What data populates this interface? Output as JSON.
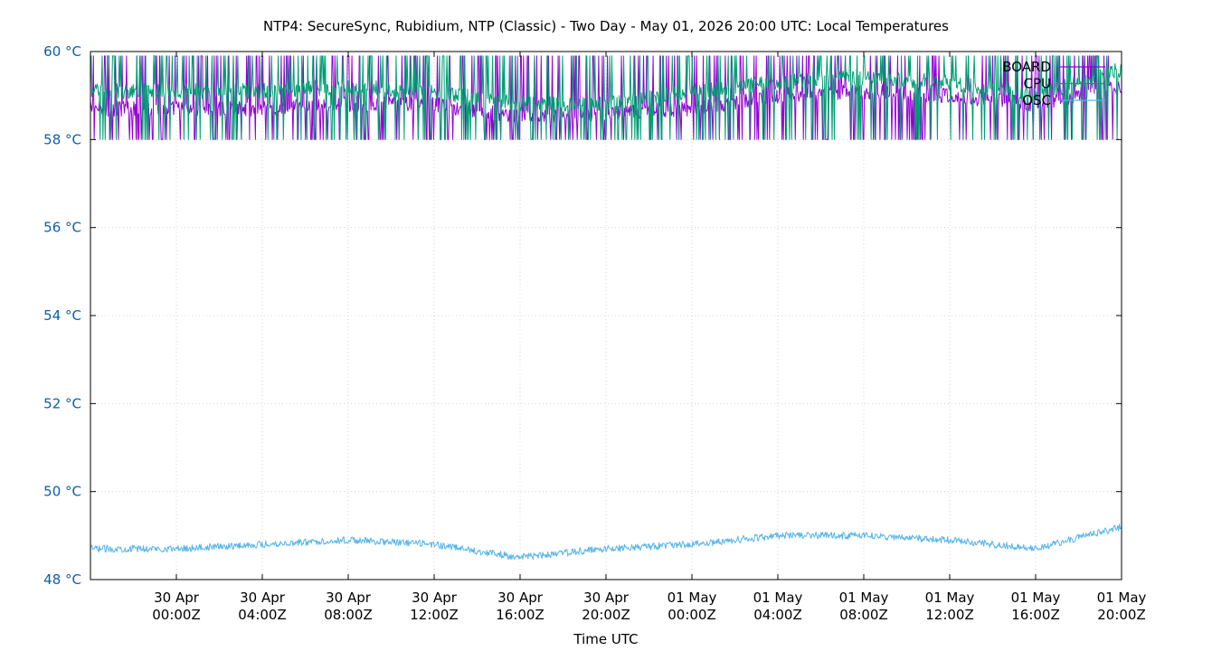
{
  "chart_data": {
    "type": "line",
    "title": "NTP4: SecureSync, Rubidium, NTP (Classic) - Two Day - May 01, 2026 20:00 UTC: Local Temperatures",
    "xlabel": "Time UTC",
    "ylabel": "",
    "ylim": [
      48,
      60
    ],
    "yunit": "°C",
    "yticks": [
      {
        "value": 48,
        "label": "48 °C"
      },
      {
        "value": 50,
        "label": "50 °C"
      },
      {
        "value": 52,
        "label": "52 °C"
      },
      {
        "value": 54,
        "label": "54 °C"
      },
      {
        "value": 56,
        "label": "56 °C"
      },
      {
        "value": 58,
        "label": "58 °C"
      },
      {
        "value": 60,
        "label": "60 °C"
      }
    ],
    "xrange": [
      "2026-04-29T20:00Z",
      "2026-05-01T20:00Z"
    ],
    "xticks": [
      {
        "time": "2026-04-30T00:00Z",
        "line1": "30 Apr",
        "line2": "00:00Z"
      },
      {
        "time": "2026-04-30T04:00Z",
        "line1": "30 Apr",
        "line2": "04:00Z"
      },
      {
        "time": "2026-04-30T08:00Z",
        "line1": "30 Apr",
        "line2": "08:00Z"
      },
      {
        "time": "2026-04-30T12:00Z",
        "line1": "30 Apr",
        "line2": "12:00Z"
      },
      {
        "time": "2026-04-30T16:00Z",
        "line1": "30 Apr",
        "line2": "16:00Z"
      },
      {
        "time": "2026-04-30T20:00Z",
        "line1": "30 Apr",
        "line2": "20:00Z"
      },
      {
        "time": "2026-05-01T00:00Z",
        "line1": "01 May",
        "line2": "00:00Z"
      },
      {
        "time": "2026-05-01T04:00Z",
        "line1": "01 May",
        "line2": "04:00Z"
      },
      {
        "time": "2026-05-01T08:00Z",
        "line1": "01 May",
        "line2": "08:00Z"
      },
      {
        "time": "2026-05-01T12:00Z",
        "line1": "01 May",
        "line2": "12:00Z"
      },
      {
        "time": "2026-05-01T16:00Z",
        "line1": "01 May",
        "line2": "16:00Z"
      },
      {
        "time": "2026-05-01T20:00Z",
        "line1": "01 May",
        "line2": "20:00Z"
      }
    ],
    "grid": true,
    "legend_position": "top-right",
    "series": [
      {
        "name": "BOARD",
        "color": "#9400d3",
        "x": [
          "2026-04-29T20:00Z",
          "2026-04-30T00:00Z",
          "2026-04-30T04:00Z",
          "2026-04-30T08:00Z",
          "2026-04-30T12:00Z",
          "2026-04-30T16:00Z",
          "2026-04-30T20:00Z",
          "2026-05-01T00:00Z",
          "2026-05-01T04:00Z",
          "2026-05-01T08:00Z",
          "2026-05-01T12:00Z",
          "2026-05-01T16:00Z",
          "2026-05-01T20:00Z"
        ],
        "y": [
          58.7,
          58.7,
          58.7,
          58.8,
          58.8,
          58.5,
          58.6,
          58.7,
          59.0,
          59.1,
          59.0,
          58.8,
          59.2
        ],
        "noise_range": [
          58,
          59.9
        ]
      },
      {
        "name": "CPU",
        "color": "#009e73",
        "x": [
          "2026-04-29T20:00Z",
          "2026-04-30T00:00Z",
          "2026-04-30T04:00Z",
          "2026-04-30T08:00Z",
          "2026-04-30T12:00Z",
          "2026-04-30T16:00Z",
          "2026-04-30T20:00Z",
          "2026-05-01T00:00Z",
          "2026-05-01T04:00Z",
          "2026-05-01T08:00Z",
          "2026-05-01T12:00Z",
          "2026-05-01T16:00Z",
          "2026-05-01T20:00Z"
        ],
        "y": [
          59.1,
          59.1,
          59.1,
          59.2,
          59.1,
          58.8,
          58.8,
          59.1,
          59.3,
          59.4,
          59.3,
          59.0,
          59.6
        ],
        "noise_range": [
          58,
          59.9
        ]
      },
      {
        "name": "OSC",
        "color": "#56b4e9",
        "x": [
          "2026-04-29T20:00Z",
          "2026-04-30T00:00Z",
          "2026-04-30T04:00Z",
          "2026-04-30T08:00Z",
          "2026-04-30T12:00Z",
          "2026-04-30T16:00Z",
          "2026-04-30T20:00Z",
          "2026-05-01T00:00Z",
          "2026-05-01T04:00Z",
          "2026-05-01T08:00Z",
          "2026-05-01T12:00Z",
          "2026-05-01T16:00Z",
          "2026-05-01T20:00Z"
        ],
        "y": [
          48.7,
          48.7,
          48.8,
          48.9,
          48.8,
          48.5,
          48.7,
          48.8,
          49.0,
          49.0,
          48.9,
          48.7,
          49.2
        ]
      }
    ]
  }
}
